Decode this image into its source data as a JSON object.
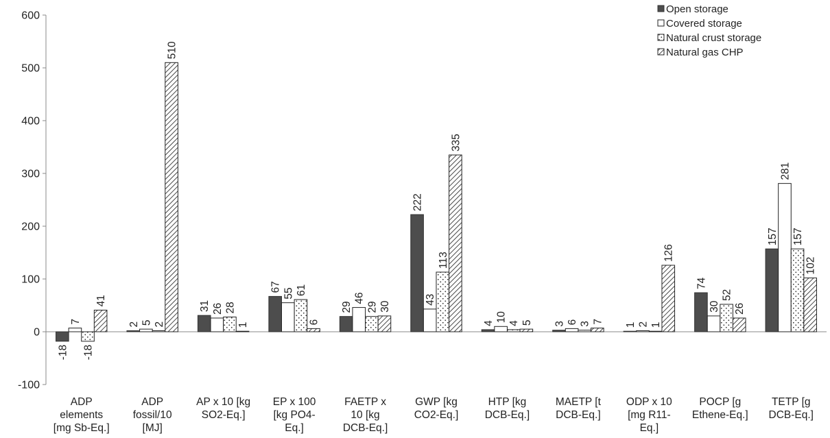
{
  "chart_data": {
    "type": "bar",
    "title": "",
    "xlabel": "",
    "ylabel": "",
    "ylim": [
      -100,
      600
    ],
    "yticks": [
      -100,
      0,
      100,
      200,
      300,
      400,
      500,
      600
    ],
    "grid": false,
    "legend_position": "top-right",
    "categories": [
      [
        "ADP",
        "elements",
        "[mg Sb-Eq.]"
      ],
      [
        "ADP",
        "fossil/10",
        "[MJ]"
      ],
      [
        "AP x 10 [kg",
        "SO2-Eq.]"
      ],
      [
        "EP x 100",
        "[kg PO4-",
        "Eq.]"
      ],
      [
        "FAETP x",
        "10 [kg",
        "DCB-Eq.]"
      ],
      [
        "GWP [kg",
        "CO2-Eq.]"
      ],
      [
        "HTP [kg",
        "DCB-Eq.]"
      ],
      [
        "MAETP [t",
        "DCB-Eq.]"
      ],
      [
        "ODP x 10",
        "[mg R11-",
        "Eq.]"
      ],
      [
        "POCP [g",
        "Ethene-Eq.]"
      ],
      [
        "TETP [g",
        "DCB-Eq.]"
      ]
    ],
    "series": [
      {
        "name": "Open storage",
        "style": "solid",
        "color": "#4d4d4d",
        "values": [
          -18,
          2,
          31,
          67,
          29,
          222,
          4,
          3,
          1,
          74,
          157
        ],
        "labels": [
          "-18",
          "2",
          "31",
          "67",
          "29",
          "222",
          "4",
          "3",
          "1",
          "74",
          "157"
        ]
      },
      {
        "name": "Covered storage",
        "style": "white",
        "color": "#ffffff",
        "values": [
          7,
          5,
          26,
          55,
          46,
          43,
          10,
          6,
          2,
          30,
          281
        ],
        "labels": [
          "7",
          "5",
          "26",
          "55",
          "46",
          "43",
          "10",
          "6",
          "2",
          "30",
          "281"
        ]
      },
      {
        "name": "Natural crust storage",
        "style": "dotted",
        "color": "#ffffff",
        "values": [
          -18,
          2,
          28,
          61,
          29,
          113,
          4,
          3,
          1,
          52,
          157
        ],
        "labels": [
          "-18",
          "2",
          "28",
          "61",
          "29",
          "113",
          "4",
          "3",
          "1",
          "52",
          "157"
        ]
      },
      {
        "name": "Natural gas CHP",
        "style": "hatched",
        "color": "#ffffff",
        "values": [
          41,
          510,
          1,
          6,
          30,
          335,
          5,
          7,
          126,
          26,
          102
        ],
        "labels": [
          "41",
          "510",
          "1",
          "6",
          "30",
          "335",
          "5",
          "7",
          "126",
          "26",
          "102"
        ]
      }
    ]
  }
}
